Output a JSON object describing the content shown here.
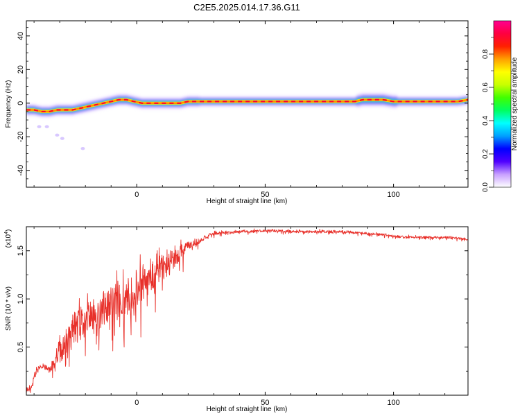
{
  "title": "C2E5.2025.014.17.36.G11",
  "chart_data": [
    {
      "type": "heatmap",
      "xlabel": "Height of straight line (km)",
      "ylabel": "Frequency (Hz)",
      "xlim": [
        -43,
        129
      ],
      "ylim": [
        -50,
        49
      ],
      "xticks": [
        0,
        50,
        100
      ],
      "yticks": [
        -40,
        -20,
        0,
        20,
        40
      ],
      "colorbar": {
        "label": "Normalized spectral amplitude",
        "range": [
          0,
          1
        ],
        "ticks": [
          "0.0",
          "0.2",
          "0.4",
          "0.6",
          "0.8"
        ],
        "colors": [
          "#ffffff",
          "#c8a0ff",
          "#5000ff",
          "#0000ff",
          "#00a0ff",
          "#00ffff",
          "#00ff60",
          "#40ff00",
          "#c8ff00",
          "#ffff00",
          "#ffa000",
          "#ff2000",
          "#ff0040",
          "#ff0090"
        ]
      },
      "ridge": {
        "x": [
          -43,
          -40,
          -37,
          -34,
          -31,
          -28,
          -25,
          -22,
          -19,
          -16,
          -13,
          -10,
          -7,
          -4,
          -1,
          2,
          5,
          8,
          11,
          14,
          17,
          20,
          25,
          30,
          40,
          50,
          60,
          70,
          80,
          85,
          88,
          92,
          96,
          100,
          105,
          110,
          115,
          120,
          125,
          129
        ],
        "freq": [
          -4,
          -4,
          -5,
          -5,
          -4,
          -4,
          -4,
          -3,
          -2,
          -1,
          0,
          1,
          2,
          2,
          1,
          0,
          0,
          0,
          0,
          0,
          0,
          1,
          1,
          1,
          1,
          1,
          1,
          1,
          1,
          1,
          2,
          2,
          2,
          1,
          1,
          1,
          1,
          1,
          1,
          2
        ]
      },
      "outliers": [
        {
          "x": -38,
          "freq": -14
        },
        {
          "x": -35,
          "freq": -14
        },
        {
          "x": -31,
          "freq": -19
        },
        {
          "x": -29,
          "freq": -21
        },
        {
          "x": -21,
          "freq": -27
        }
      ]
    },
    {
      "type": "line",
      "xlabel": "Height of straight line (km)",
      "ylabel": "SNR (10 * v/v)",
      "multiplier": "(x10⁴)",
      "multiplier_base": "(x10",
      "multiplier_exp": "4",
      "multiplier_close": ")",
      "xlim": [
        -43,
        129
      ],
      "ylim": [
        0,
        1.75
      ],
      "xticks": [
        0,
        50,
        100
      ],
      "yticks": [
        "0.5",
        "1.0",
        "1.5"
      ],
      "color": "#e8302a",
      "series": [
        {
          "x": [
            -43,
            -41,
            -40,
            -38,
            -36,
            -34,
            -32,
            -30,
            -28,
            -26,
            -24,
            -22,
            -20,
            -18,
            -16,
            -14,
            -12,
            -10,
            -8,
            -6,
            -4,
            -2,
            0,
            2,
            4,
            6,
            8,
            10,
            12,
            14,
            16,
            18,
            20,
            22,
            24,
            26,
            28,
            30,
            35,
            40,
            45,
            50,
            55,
            60,
            65,
            70,
            75,
            80,
            85,
            90,
            95,
            100,
            105,
            110,
            115,
            120,
            125,
            129
          ],
          "envelope": [
            0.05,
            0.08,
            0.2,
            0.28,
            0.3,
            0.26,
            0.35,
            0.5,
            0.58,
            0.62,
            0.7,
            0.75,
            0.8,
            0.82,
            0.85,
            0.88,
            0.92,
            0.95,
            0.98,
            1.0,
            1.03,
            1.05,
            1.1,
            1.15,
            1.2,
            1.25,
            1.28,
            1.32,
            1.35,
            1.4,
            1.45,
            1.5,
            1.55,
            1.58,
            1.6,
            1.63,
            1.66,
            1.68,
            1.69,
            1.7,
            1.7,
            1.71,
            1.71,
            1.7,
            1.7,
            1.7,
            1.7,
            1.7,
            1.69,
            1.68,
            1.67,
            1.65,
            1.64,
            1.64,
            1.64,
            1.64,
            1.63,
            1.62
          ],
          "noise": [
            0.03,
            0.05,
            0.06,
            0.05,
            0.05,
            0.06,
            0.12,
            0.18,
            0.25,
            0.3,
            0.3,
            0.3,
            0.3,
            0.32,
            0.32,
            0.3,
            0.3,
            0.32,
            0.3,
            0.3,
            0.3,
            0.3,
            0.3,
            0.3,
            0.28,
            0.28,
            0.25,
            0.25,
            0.22,
            0.2,
            0.16,
            0.12,
            0.08,
            0.06,
            0.05,
            0.04,
            0.03,
            0.03,
            0.02,
            0.02,
            0.02,
            0.02,
            0.02,
            0.02,
            0.02,
            0.02,
            0.02,
            0.02,
            0.02,
            0.02,
            0.02,
            0.02,
            0.02,
            0.02,
            0.02,
            0.02,
            0.02,
            0.02
          ]
        }
      ]
    }
  ]
}
